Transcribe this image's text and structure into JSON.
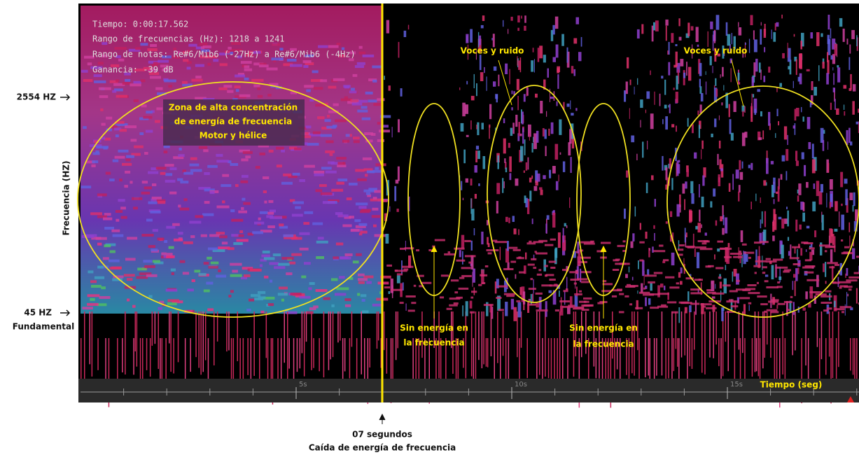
{
  "info": {
    "time": "Tiempo: 0:00:17.562",
    "freq_range": "Rango de frecuencias (Hz): 1218 a 1241",
    "note_range": "Rango de notas: Re#6/Mib6 (-27Hz) a Re#6/Mib6 (-4Hz)",
    "gain": "Ganancia: -39 dB"
  },
  "y_labels": {
    "axis": "Frecuencia (HZ)",
    "high": "2554 HZ",
    "low": "45 HZ",
    "low_caption": "Fundamental"
  },
  "annotations": {
    "zone": [
      "Zona de alta concentración",
      "de energía de frecuencia",
      "Motor y hélice"
    ],
    "voices_1": "Voces y ruido",
    "voices_2": "Voces y ruido",
    "no_energy_1": [
      "Sin energía en",
      "la frecuencia"
    ],
    "no_energy_2": [
      "Sin energía en",
      "la frecuencia"
    ],
    "drop": [
      "07 segundos",
      "Caída de energía de frecuencia"
    ]
  },
  "time_axis": {
    "label": "Tiempo (seg)",
    "ticks": [
      {
        "value": 5,
        "label": "5s"
      },
      {
        "value": 10,
        "label": "10s"
      },
      {
        "value": 15,
        "label": "15s"
      }
    ]
  }
}
